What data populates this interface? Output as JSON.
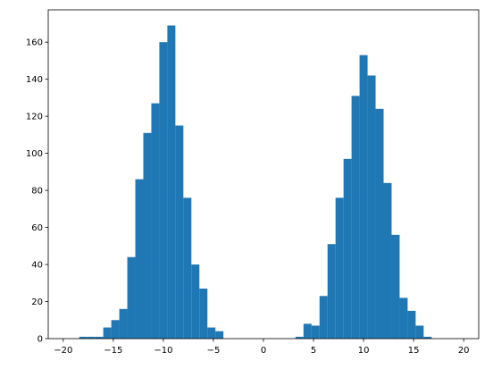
{
  "chart_data": {
    "type": "histogram",
    "bins": [
      -20,
      -19.2,
      -18.4,
      -17.6,
      -16.8,
      -16,
      -15.2,
      -14.4,
      -13.6,
      -12.8,
      -12,
      -11.2,
      -10.4,
      -9.6,
      -8.8,
      -8,
      -7.2,
      -6.4,
      -5.6,
      -4.8,
      -4,
      -3.2,
      -2.4,
      -1.6,
      -0.8,
      0,
      0.8,
      1.6,
      2.4,
      3.2,
      4,
      4.8,
      5.6,
      6.4,
      7.2,
      8,
      8.8,
      9.6,
      10.4,
      11.2,
      12,
      12.8,
      13.6,
      14.4,
      15.2,
      16,
      16.8,
      17.6,
      18.4,
      19.2,
      20
    ],
    "values": [
      0,
      0,
      1,
      1,
      1,
      6,
      10,
      16,
      44,
      86,
      111,
      127,
      160,
      169,
      115,
      76,
      40,
      27,
      6,
      4,
      0,
      0,
      0,
      0,
      0,
      0,
      0,
      0,
      0,
      1,
      8,
      7,
      23,
      51,
      76,
      97,
      131,
      153,
      142,
      124,
      84,
      56,
      22,
      15,
      7,
      1,
      0,
      0,
      0,
      0
    ],
    "color": "#1f77b4",
    "xlim": [
      -21.5,
      21.5
    ],
    "ylim": [
      0,
      177.45
    ],
    "xticks": [
      {
        "value": -20,
        "label": "−20"
      },
      {
        "value": -15,
        "label": "−15"
      },
      {
        "value": -10,
        "label": "−10"
      },
      {
        "value": -5,
        "label": "−5"
      },
      0,
      5,
      10,
      15,
      20
    ],
    "yticks": [
      0,
      20,
      40,
      60,
      80,
      100,
      120,
      140,
      160
    ],
    "grid": false
  }
}
